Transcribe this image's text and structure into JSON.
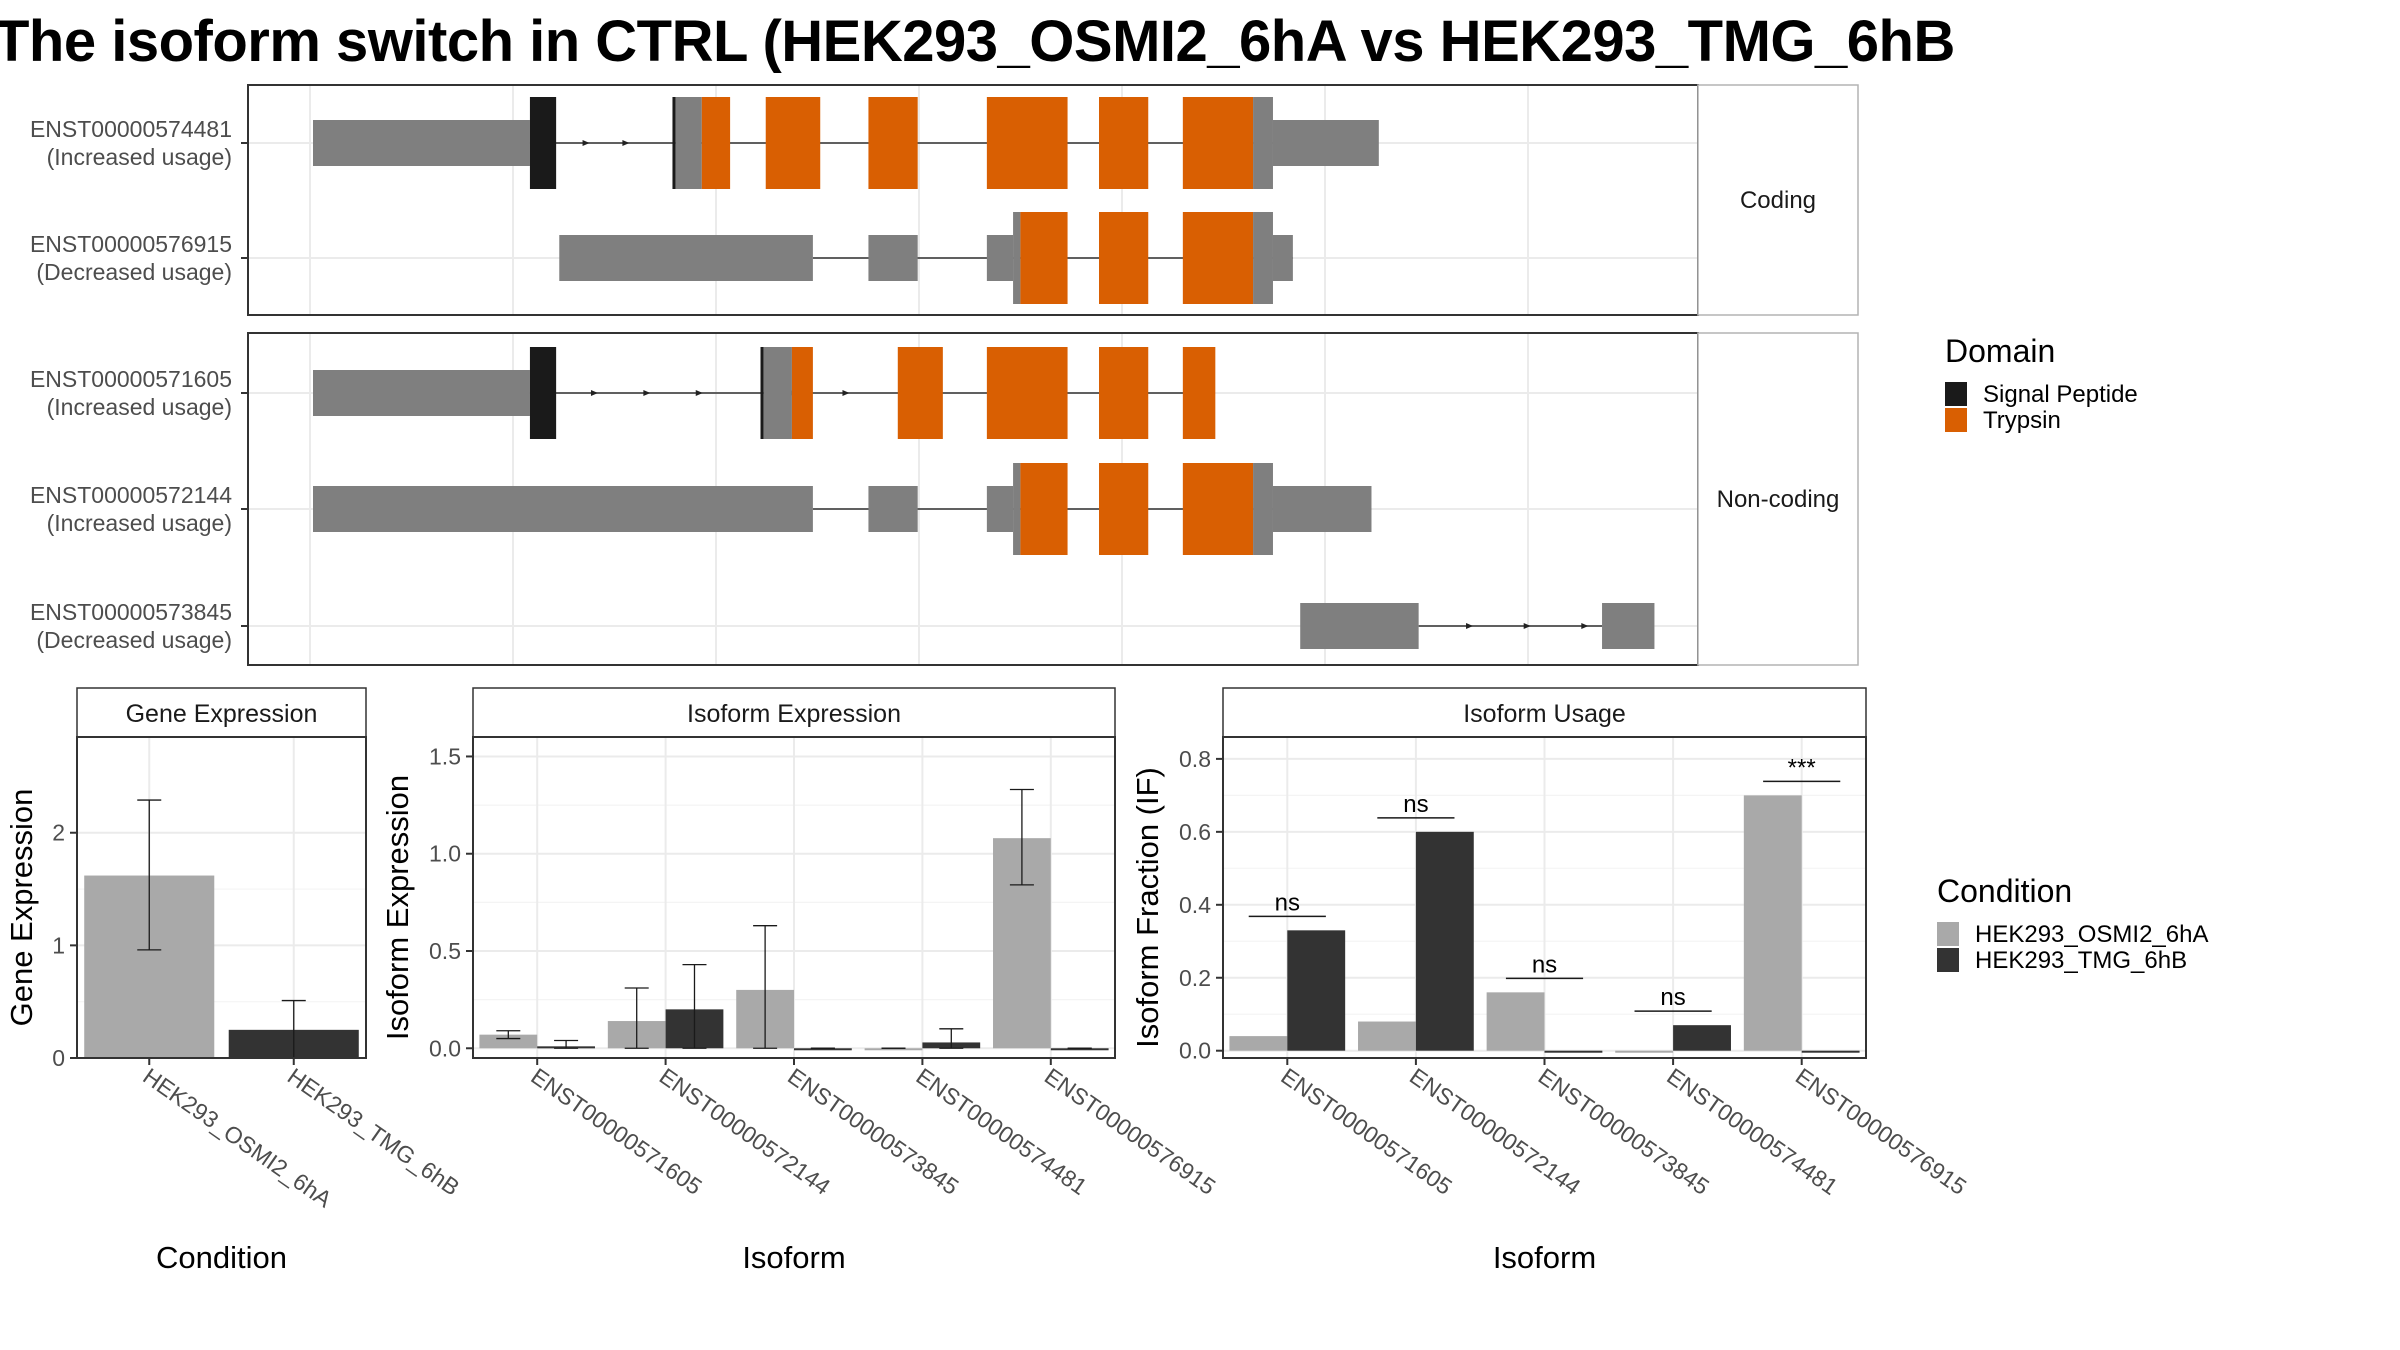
{
  "title": "The isoform switch in CTRL (HEK293_OSMI2_6hA vs HEK293_TMG_6hB",
  "structure": {
    "groups": [
      {
        "label": "Coding",
        "transcripts": [
          {
            "id": "ENST00000574481",
            "usage": "(Increased usage)"
          },
          {
            "id": "ENST00000576915",
            "usage": "(Decreased usage)"
          }
        ]
      },
      {
        "label": "Non-coding",
        "transcripts": [
          {
            "id": "ENST00000571605",
            "usage": "(Increased usage)"
          },
          {
            "id": "ENST00000572144",
            "usage": "(Increased usage)"
          },
          {
            "id": "ENST00000573845",
            "usage": "(Decreased usage)"
          }
        ]
      }
    ],
    "domain_legend": {
      "title": "Domain",
      "items": [
        {
          "label": "Signal Peptide",
          "color": "#1a1a1a"
        },
        {
          "label": "Trypsin",
          "color": "#d95f02"
        }
      ]
    },
    "exon_color": "#7f7f7f"
  },
  "condition_legend": {
    "title": "Condition",
    "items": [
      {
        "label": "HEK293_OSMI2_6hA",
        "color": "#a9a9a9"
      },
      {
        "label": "HEK293_TMG_6hB",
        "color": "#333333"
      }
    ]
  },
  "chart_data": [
    {
      "type": "bar",
      "panel": "Gene Expression",
      "xlabel": "Condition",
      "ylabel": "Gene Expression",
      "categories": [
        "HEK293_OSMI2_6hA",
        "HEK293_TMG_6hB"
      ],
      "values": [
        1.62,
        0.25
      ],
      "error_low": [
        0.96,
        0.0
      ],
      "error_high": [
        2.29,
        0.51
      ],
      "ylim": [
        0,
        2.85
      ],
      "yticks": [
        0,
        1,
        2
      ],
      "grid": true
    },
    {
      "type": "bar",
      "panel": "Isoform Expression",
      "xlabel": "Isoform",
      "ylabel": "Isoform Expression",
      "categories": [
        "ENST00000571605",
        "ENST00000572144",
        "ENST00000573845",
        "ENST00000574481",
        "ENST00000576915"
      ],
      "series": [
        {
          "name": "HEK293_OSMI2_6hA",
          "values": [
            0.07,
            0.14,
            0.3,
            0.0,
            1.08
          ],
          "error_low": [
            0.05,
            0.0,
            0.0,
            0.0,
            0.84
          ],
          "error_high": [
            0.09,
            0.31,
            0.63,
            0.0,
            1.33
          ]
        },
        {
          "name": "HEK293_TMG_6hB",
          "values": [
            0.01,
            0.2,
            0.0,
            0.03,
            0.0
          ],
          "error_low": [
            0.0,
            0.0,
            0.0,
            0.0,
            0.0
          ],
          "error_high": [
            0.04,
            0.43,
            0.0,
            0.1,
            0.0
          ]
        }
      ],
      "ylim": [
        -0.05,
        1.6
      ],
      "yticks": [
        0.0,
        0.5,
        1.0,
        1.5
      ],
      "grid": true
    },
    {
      "type": "bar",
      "panel": "Isoform Usage",
      "xlabel": "Isoform",
      "ylabel": "Isoform Fraction (IF)",
      "categories": [
        "ENST00000571605",
        "ENST00000572144",
        "ENST00000573845",
        "ENST00000574481",
        "ENST00000576915"
      ],
      "series": [
        {
          "name": "HEK293_OSMI2_6hA",
          "values": [
            0.04,
            0.08,
            0.16,
            0.0,
            0.7
          ]
        },
        {
          "name": "HEK293_TMG_6hB",
          "values": [
            0.33,
            0.6,
            0.0,
            0.07,
            0.0
          ]
        }
      ],
      "significance": [
        "ns",
        "ns",
        "ns",
        "ns",
        "***"
      ],
      "ylim": [
        -0.02,
        0.86
      ],
      "yticks": [
        0.0,
        0.2,
        0.4,
        0.6,
        0.8
      ],
      "grid": true
    }
  ]
}
